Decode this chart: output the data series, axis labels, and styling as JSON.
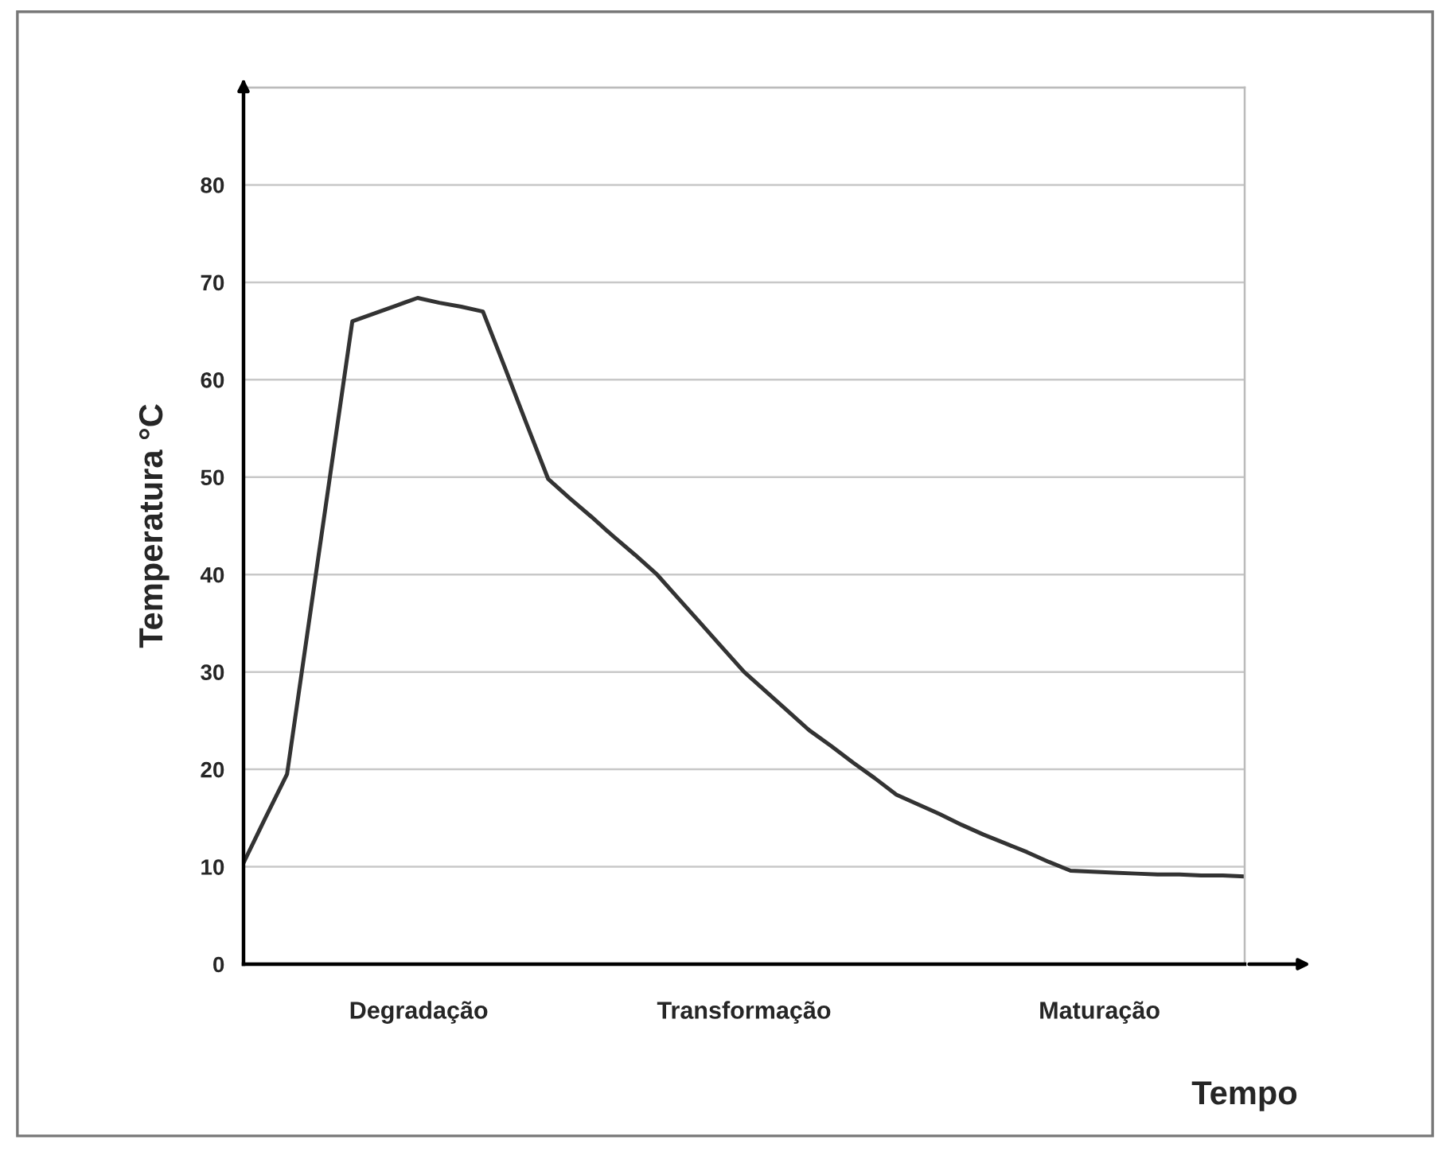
{
  "chart_data": {
    "type": "line",
    "xlabel": "Tempo",
    "ylabel": "Temperatura °C",
    "categories": [
      null,
      null,
      null,
      null,
      null,
      null,
      null,
      null,
      null,
      null,
      null,
      null,
      null,
      null,
      null,
      null,
      null,
      null,
      null,
      null,
      null,
      null,
      null,
      null,
      null,
      null,
      null,
      null,
      null,
      null,
      null,
      null,
      null,
      null,
      null,
      null,
      null,
      null,
      null,
      null,
      null,
      null,
      null,
      null,
      null,
      null,
      null
    ],
    "series": [
      {
        "color": "#333333",
        "values": [
          10.4,
          15.0,
          19.5,
          35.0,
          50.5,
          66,
          66.8,
          67.6,
          68.4,
          67.9,
          67.5,
          67.0,
          61.3,
          55.5,
          49.8,
          47.8,
          45.9,
          43.9,
          42.0,
          40.0,
          37.5,
          35.0,
          32.5,
          30.0,
          28.0,
          26.0,
          24.0,
          22.4,
          20.7,
          19.1,
          17.4,
          16.4,
          15.4,
          14.3,
          13.3,
          12.4,
          11.5,
          10.5,
          9.6,
          9.5,
          9.4,
          9.3,
          9.2,
          9.2,
          9.1,
          9.1,
          9.0
        ]
      }
    ],
    "ylim": [
      0,
      90
    ],
    "yticks": [
      0,
      10,
      20,
      30,
      40,
      50,
      60,
      70,
      80,
      {
        "value": 90,
        "label": null
      }
    ],
    "grid": "y",
    "annotations": [
      "Degradação",
      "Transformação",
      "Maturação"
    ],
    "marker": "none",
    "line_style": "solid",
    "legend": false
  }
}
